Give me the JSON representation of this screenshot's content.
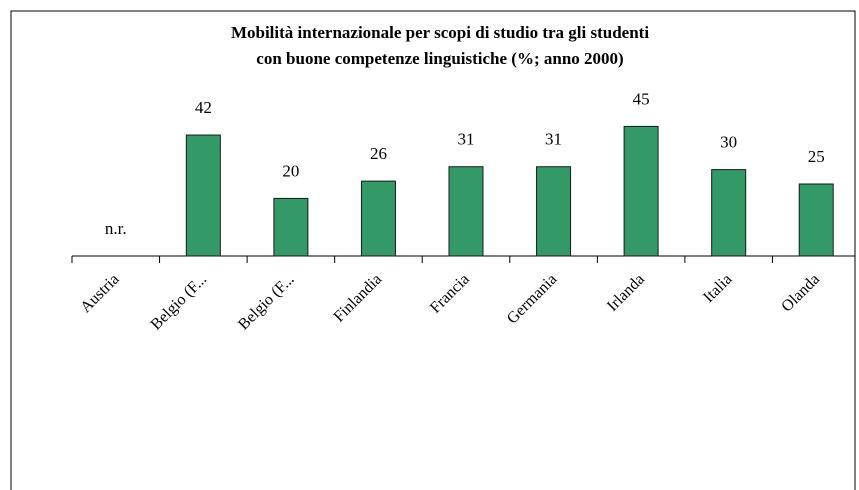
{
  "chart_data": {
    "type": "bar",
    "title": [
      "Mobilità internazionale per scopi di studio tra gli studenti",
      "con buone competenze linguistiche (%; anno 2000)"
    ],
    "categories": [
      "Austria",
      "Belgio (F...",
      "Belgio (F...",
      "Finlandia",
      "Francia",
      "Germania",
      "Irlanda",
      "Italia",
      "Olanda"
    ],
    "values": [
      null,
      42,
      20,
      26,
      31,
      31,
      45,
      30,
      25
    ],
    "value_labels": [
      "n.r.",
      "42",
      "20",
      "26",
      "31",
      "31",
      "45",
      "30",
      "25"
    ],
    "color": "#339966",
    "ylim": [
      0,
      50
    ]
  }
}
